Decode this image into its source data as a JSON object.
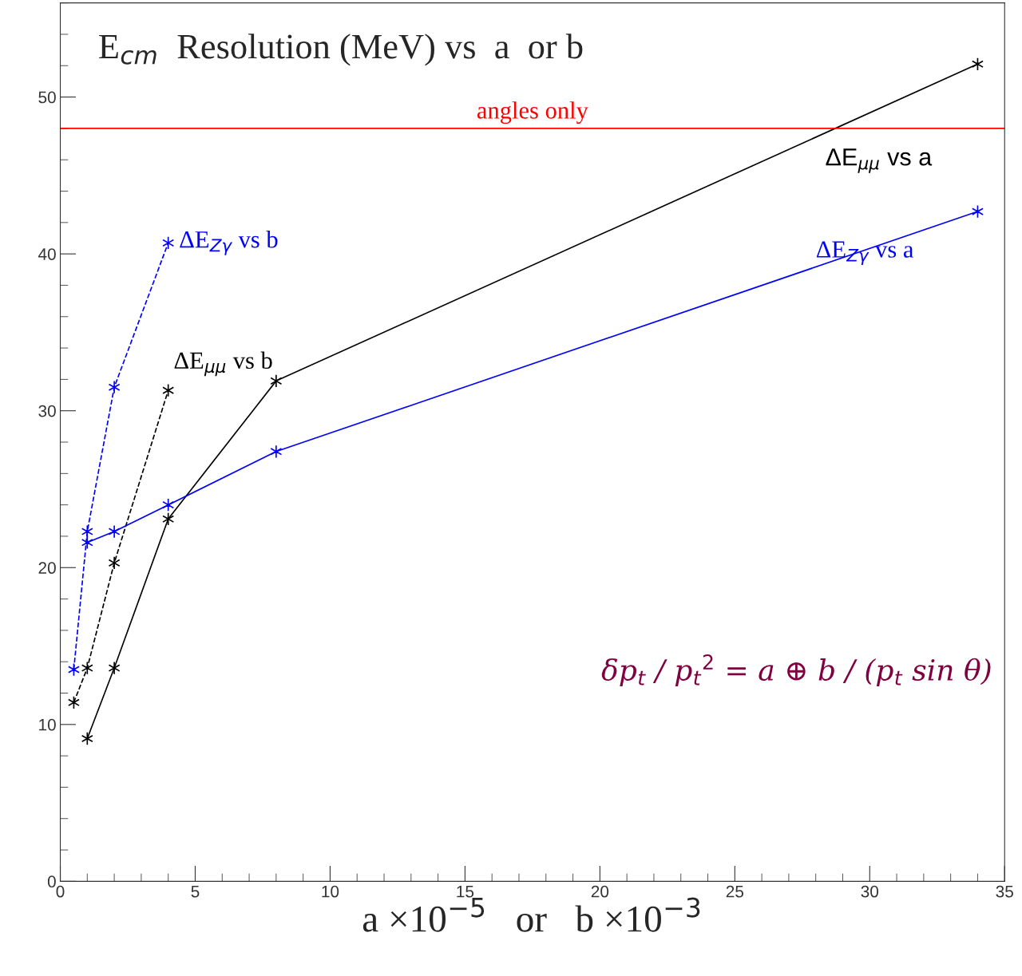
{
  "chart_data": {
    "type": "line",
    "title": "E$_{cm}$  Resolution (MeV) vs  a  or b",
    "xlabel": "a ×10$^{−5}$   or   b ×10$^{−3}$",
    "series": [
      {
        "name": "ΔE$_{Zγ}$ vs b",
        "color": "#0000ff",
        "line_style": "dashed",
        "x": [
          0.5,
          1,
          2,
          4
        ],
        "values": [
          13.5,
          22.3,
          31.5,
          40.7
        ]
      },
      {
        "name": "ΔE$_{μμ}$ vs b",
        "color": "#000000",
        "line_style": "dashed",
        "x": [
          0.5,
          1,
          2,
          4
        ],
        "values": [
          11.4,
          13.6,
          20.3,
          31.3
        ]
      },
      {
        "name": "ΔE$_{μμ}$ vs a",
        "color": "#000000",
        "line_style": "solid",
        "x": [
          1,
          2,
          4,
          8,
          34
        ],
        "values": [
          9.1,
          13.6,
          23.1,
          31.9,
          52.1
        ]
      },
      {
        "name": "ΔE$_{Zγ}$ vs a",
        "color": "#0000ff",
        "line_style": "solid",
        "x": [
          1,
          2,
          4,
          8,
          34
        ],
        "values": [
          21.6,
          22.3,
          24.0,
          27.4,
          42.7
        ]
      }
    ],
    "marker": "cross",
    "legend": false,
    "grid": false,
    "xlim": [
      0,
      35
    ],
    "xticks": [
      0,
      5,
      10,
      15,
      20,
      25,
      30,
      35
    ],
    "ylim": [
      0,
      56
    ],
    "yticks": [
      0,
      10,
      20,
      30,
      40,
      50
    ],
    "ref_lines": [
      {
        "axis": "y",
        "value": 48,
        "label": "angles only",
        "color": "#ff0000"
      }
    ],
    "annotations": [
      "δp$_{t}$ / p$_{t}$$^{2}$ = a ⊕ b / (p$_{t}$ sin θ)"
    ]
  }
}
